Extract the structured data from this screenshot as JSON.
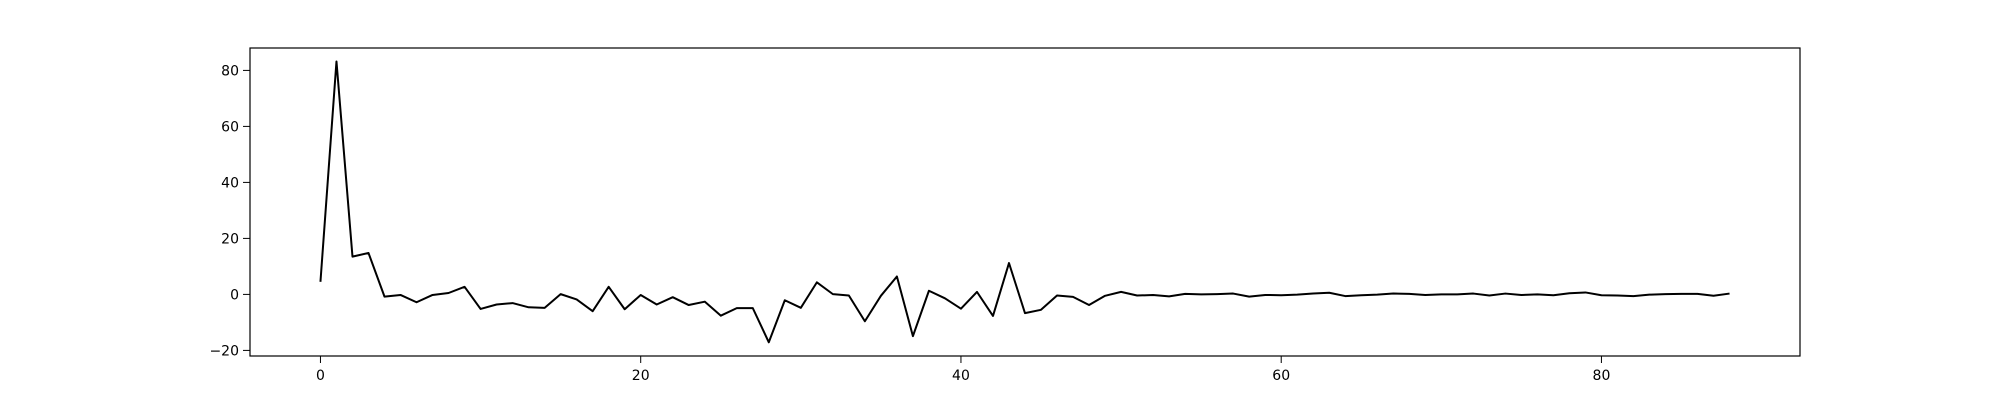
{
  "chart_data": {
    "type": "line",
    "title": "",
    "xlabel": "",
    "ylabel": "",
    "xlim": [
      -4.4,
      92.4
    ],
    "ylim": [
      -22.0,
      88.0
    ],
    "grid": false,
    "line_color": "#000000",
    "x_ticks": [
      0,
      20,
      40,
      60,
      80
    ],
    "y_ticks": [
      -20,
      0,
      20,
      40,
      60,
      80
    ],
    "x_tick_labels": [
      "0",
      "20",
      "40",
      "60",
      "80"
    ],
    "y_tick_labels": [
      "−20",
      "0",
      "20",
      "40",
      "60",
      "80"
    ],
    "series": [
      {
        "x": [
          0,
          1,
          2,
          3,
          4,
          5,
          6,
          7,
          8,
          9,
          10,
          11,
          12,
          13,
          14,
          15,
          16,
          17,
          18,
          19,
          20,
          21,
          22,
          23,
          24,
          25,
          26,
          27,
          28,
          29,
          30,
          31,
          32,
          33,
          34,
          35,
          36,
          37,
          38,
          39,
          40,
          41,
          42,
          43,
          44,
          45,
          46,
          47,
          48,
          49,
          50,
          51,
          52,
          53,
          54,
          55,
          56,
          57,
          58,
          59,
          60,
          61,
          62,
          63,
          64,
          65,
          66,
          67,
          68,
          69,
          70,
          71,
          72,
          73,
          74,
          75,
          76,
          77,
          78,
          79,
          80,
          81,
          82,
          83,
          84,
          85,
          86,
          87,
          88
        ],
        "values": [
          4.5,
          83.2,
          13.5,
          14.8,
          -0.8,
          -0.2,
          -2.8,
          -0.2,
          0.5,
          2.7,
          -5.2,
          -3.6,
          -3.1,
          -4.6,
          -4.8,
          0.1,
          -1.8,
          -6.0,
          2.7,
          -5.3,
          -0.2,
          -3.6,
          -1.0,
          -3.8,
          -2.6,
          -7.6,
          -4.9,
          -4.9,
          -17.1,
          -2.1,
          -4.8,
          4.3,
          0.1,
          -0.4,
          -9.6,
          -0.5,
          6.4,
          -14.9,
          1.3,
          -1.4,
          -5.1,
          0.9,
          -7.7,
          11.2,
          -6.7,
          -5.5,
          -0.4,
          -0.9,
          -3.8,
          -0.5,
          0.9,
          -0.4,
          -0.2,
          -0.7,
          0.2,
          0.0,
          0.1,
          0.3,
          -0.8,
          -0.2,
          -0.3,
          -0.1,
          0.3,
          0.6,
          -0.6,
          -0.3,
          -0.1,
          0.3,
          0.2,
          -0.2,
          0.0,
          0.0,
          0.3,
          -0.4,
          0.3,
          -0.2,
          0.0,
          -0.3,
          0.4,
          0.7,
          -0.3,
          -0.4,
          -0.6,
          -0.1,
          0.1,
          0.2,
          0.2,
          -0.5,
          0.3
        ]
      }
    ]
  }
}
